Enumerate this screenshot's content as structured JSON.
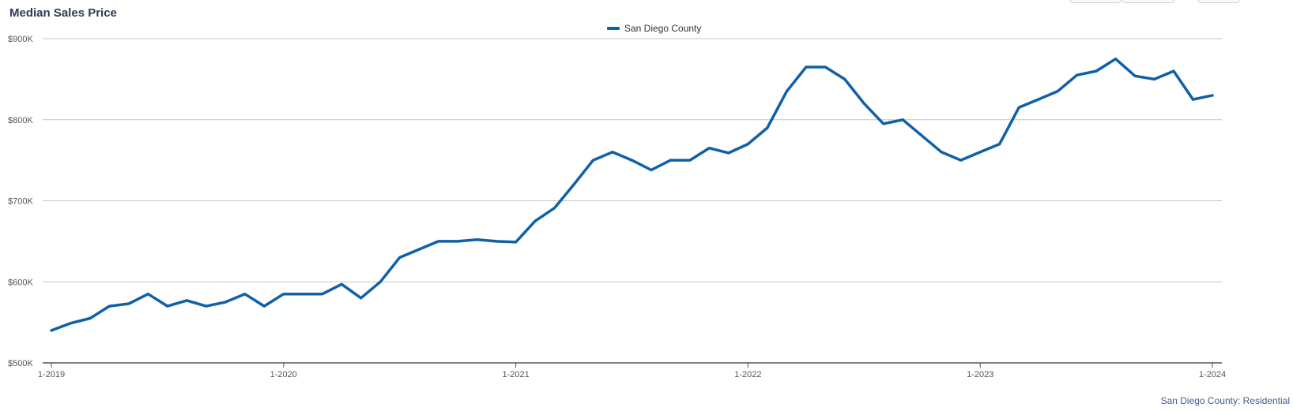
{
  "header": {
    "title": "Median Sales Price"
  },
  "colors": {
    "series": "#1060a8",
    "grid": "#c6c6c6",
    "axis": "#555555",
    "tick_text": "#555555"
  },
  "footnote": "San Diego County: Residential",
  "chart_data": {
    "type": "line",
    "title": "Median Sales Price",
    "legend_position": "top-center",
    "grid": true,
    "ylim": [
      500000,
      900000
    ],
    "y_ticks": [
      500000,
      600000,
      700000,
      800000,
      900000
    ],
    "y_tick_labels": [
      "$500K",
      "$600K",
      "$700K",
      "$800K",
      "$900K"
    ],
    "x_tick_labels": [
      "1-2019",
      "1-2020",
      "1-2021",
      "1-2022",
      "1-2023",
      "1-2024"
    ],
    "series": [
      {
        "name": "San Diego County",
        "values": [
          540000,
          549000,
          555000,
          570000,
          573000,
          585000,
          570000,
          577000,
          570000,
          575000,
          585000,
          570000,
          585000,
          585000,
          585000,
          597000,
          580000,
          600000,
          630000,
          640000,
          650000,
          650000,
          652000,
          650000,
          649000,
          675000,
          691000,
          720000,
          750000,
          760000,
          750000,
          738000,
          750000,
          750000,
          765000,
          759000,
          770000,
          790000,
          835000,
          865000,
          865000,
          850000,
          820000,
          795000,
          800000,
          780000,
          760000,
          750000,
          760000,
          770000,
          815000,
          825000,
          835000,
          855000,
          860000,
          875000,
          854000,
          850000,
          860000,
          825000,
          830000
        ]
      }
    ]
  }
}
